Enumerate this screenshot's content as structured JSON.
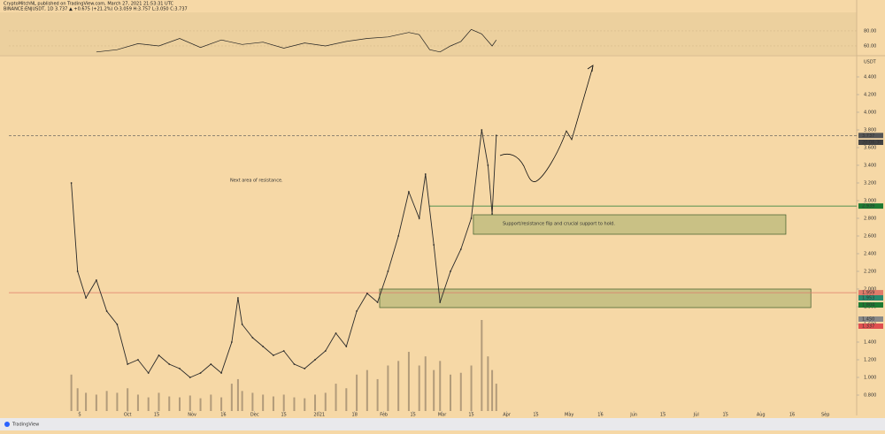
{
  "header": {
    "line1": "CryptoMitchNL published on TradingView.com, March 27, 2021 21:53:31 UTC",
    "line2": "BINANCE:ENJUSDT, 1D 3.737 ▲ +0.675 (+21.2%) O:3.059 H:3.757 L:3.050 C:3.737"
  },
  "chart_data": {
    "type": "line",
    "axis_unit": "USDT",
    "color": "#2a2a2a",
    "xlim": [
      -57,
      350
    ],
    "ylim": [
      0.62,
      4.63
    ],
    "xticks": [
      {
        "value": -23,
        "label": "S"
      },
      {
        "value": 0,
        "label": "Oct"
      },
      {
        "value": 14,
        "label": "15"
      },
      {
        "value": 31,
        "label": "Nov"
      },
      {
        "value": 46,
        "label": "16"
      },
      {
        "value": 61,
        "label": "Dec"
      },
      {
        "value": 75,
        "label": "15"
      },
      {
        "value": 92,
        "label": "2021"
      },
      {
        "value": 109,
        "label": "18"
      },
      {
        "value": 123,
        "label": "Feb"
      },
      {
        "value": 137,
        "label": "15"
      },
      {
        "value": 151,
        "label": "Mar"
      },
      {
        "value": 165,
        "label": "15"
      },
      {
        "value": 182,
        "label": "Apr"
      },
      {
        "value": 196,
        "label": "15"
      },
      {
        "value": 212,
        "label": "May"
      },
      {
        "value": 227,
        "label": "16"
      },
      {
        "value": 243,
        "label": "Jun"
      },
      {
        "value": 257,
        "label": "15"
      },
      {
        "value": 273,
        "label": "Jul"
      },
      {
        "value": 287,
        "label": "15"
      },
      {
        "value": 304,
        "label": "Aug"
      },
      {
        "value": 319,
        "label": "16"
      },
      {
        "value": 335,
        "label": "Sep"
      }
    ],
    "yticks": [
      {
        "value": 0.8,
        "label": "0.800"
      },
      {
        "value": 1.0,
        "label": "1.000"
      },
      {
        "value": 1.2,
        "label": "1.200"
      },
      {
        "value": 1.4,
        "label": "1.400"
      },
      {
        "value": 1.6,
        "label": "1.600"
      },
      {
        "value": 1.8,
        "label": "1.800"
      },
      {
        "value": 2.0,
        "label": "2.000"
      },
      {
        "value": 2.2,
        "label": "2.200"
      },
      {
        "value": 2.4,
        "label": "2.400"
      },
      {
        "value": 2.6,
        "label": "2.600"
      },
      {
        "value": 2.8,
        "label": "2.800"
      },
      {
        "value": 3.0,
        "label": "3.000"
      },
      {
        "value": 3.2,
        "label": "3.200"
      },
      {
        "value": 3.4,
        "label": "3.400"
      },
      {
        "value": 3.6,
        "label": "3.600"
      },
      {
        "value": 3.8,
        "label": "3.800"
      },
      {
        "value": 4.0,
        "label": "4.000"
      },
      {
        "value": 4.2,
        "label": "4.200"
      },
      {
        "value": 4.4,
        "label": "4.400"
      }
    ],
    "x": [
      -27,
      -24,
      -20,
      -15,
      -10,
      -5,
      0,
      5,
      10,
      15,
      20,
      25,
      30,
      35,
      40,
      45,
      50,
      53,
      55,
      60,
      65,
      70,
      75,
      80,
      85,
      90,
      95,
      100,
      105,
      110,
      115,
      120,
      125,
      130,
      135,
      140,
      143,
      147,
      150,
      155,
      160,
      165,
      170,
      173,
      175,
      177
    ],
    "values": [
      3.2,
      2.2,
      1.9,
      2.1,
      1.75,
      1.6,
      1.15,
      1.2,
      1.05,
      1.25,
      1.15,
      1.1,
      1.0,
      1.05,
      1.15,
      1.05,
      1.4,
      1.9,
      1.6,
      1.45,
      1.35,
      1.25,
      1.3,
      1.15,
      1.1,
      1.2,
      1.3,
      1.5,
      1.35,
      1.75,
      1.95,
      1.85,
      2.2,
      2.6,
      3.1,
      2.8,
      3.3,
      2.5,
      1.85,
      2.2,
      2.45,
      2.8,
      3.8,
      3.4,
      2.85,
      3.737
    ]
  },
  "volume": {
    "color": "#7a6a55",
    "ylim": [
      0,
      100
    ],
    "values": [
      40,
      25,
      20,
      18,
      22,
      20,
      25,
      18,
      15,
      20,
      16,
      15,
      17,
      14,
      18,
      15,
      30,
      35,
      22,
      20,
      18,
      16,
      18,
      15,
      14,
      18,
      20,
      30,
      25,
      40,
      45,
      35,
      50,
      55,
      65,
      50,
      60,
      45,
      55,
      40,
      42,
      50,
      100,
      60,
      45,
      30
    ]
  },
  "rsi": {
    "color": "#222",
    "ylim": [
      48.2,
      103.5
    ],
    "yticks": [
      {
        "value": 80,
        "label": "80.00"
      },
      {
        "value": 60,
        "label": "60.00"
      }
    ],
    "x": [
      -15,
      -5,
      5,
      15,
      25,
      35,
      45,
      55,
      65,
      75,
      85,
      95,
      105,
      115,
      125,
      135,
      140,
      145,
      150,
      155,
      160,
      165,
      170,
      175,
      177
    ],
    "values": [
      52,
      55,
      63,
      60,
      70,
      58,
      68,
      62,
      65,
      57,
      64,
      60,
      66,
      70,
      72,
      78,
      75,
      55,
      52,
      60,
      66,
      82,
      76,
      60,
      68
    ]
  },
  "levels": [
    {
      "value": 3.737,
      "label": "3.737",
      "color": "#555",
      "style": "dashed",
      "from": -57
    },
    {
      "value": 2.939,
      "label": "2.939",
      "color": "#1e7a32",
      "style": "solid",
      "from": 145
    },
    {
      "value": 1.959,
      "label": "1.959",
      "color": "#e07b6a",
      "style": "solid",
      "from": -57
    }
  ],
  "markers": [
    {
      "value": 3.66,
      "label": "20:06:30",
      "color": "#444"
    },
    {
      "value": 1.9,
      "label": "1.953",
      "color": "#2a8a6e"
    },
    {
      "value": 1.82,
      "label": "1.804",
      "color": "#1e7a32"
    },
    {
      "value": 1.66,
      "label": "1.450",
      "color": "#888"
    },
    {
      "value": 1.58,
      "label": "1.337",
      "color": "#e05050"
    }
  ],
  "zones": [
    {
      "x": [
        166,
        316
      ],
      "y": [
        2.62,
        2.84
      ]
    },
    {
      "x": [
        121,
        328
      ],
      "y": [
        1.79,
        2.0
      ]
    }
  ],
  "annotations": [
    "Next area of resistance.",
    "Support/resistance flip and crucial support to hold."
  ],
  "footer": "TradingView"
}
